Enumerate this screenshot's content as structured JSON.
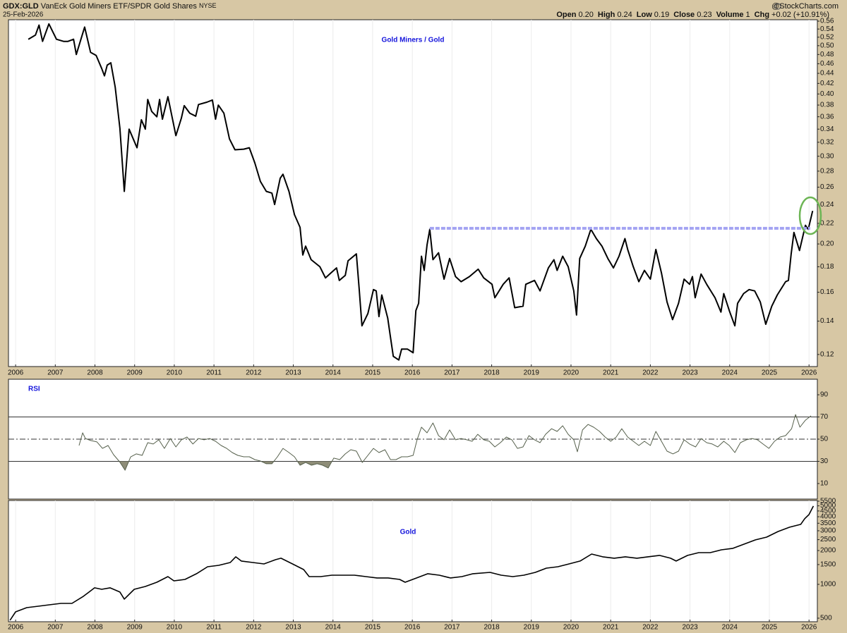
{
  "header": {
    "symbol": "GDX:GLD",
    "name": "VanEck Gold Miners ETF/SPDR Gold Shares",
    "exchange": "NYSE",
    "date": "25-Feb-2026",
    "source": "@StockCharts.com",
    "quote": [
      {
        "label": "Open",
        "value": "0.20"
      },
      {
        "label": "High",
        "value": "0.24"
      },
      {
        "label": "Low",
        "value": "0.19"
      },
      {
        "label": "Close",
        "value": "0.23"
      },
      {
        "label": "Volume",
        "value": "1"
      },
      {
        "label": "Chg",
        "value": "+0.02 (+10.91%)"
      }
    ]
  },
  "chart_data": [
    {
      "type": "line",
      "title": "Gold Miners / Gold",
      "log_scale": true,
      "grid": true,
      "color": "#000000",
      "xlim": [
        2005.82,
        2026.21
      ],
      "xticks": [
        2006,
        2007,
        2008,
        2009,
        2010,
        2011,
        2012,
        2013,
        2014,
        2015,
        2016,
        2017,
        2018,
        2019,
        2020,
        2021,
        2022,
        2023,
        2024,
        2025,
        2026
      ],
      "ylim": [
        0.1135,
        0.5637
      ],
      "yticks": [
        0.56,
        0.54,
        0.52,
        {
          "value": 0.5,
          "label": "0.50"
        },
        0.48,
        0.46,
        0.44,
        0.42,
        {
          "value": 0.4,
          "label": "0.40"
        },
        0.38,
        0.36,
        0.34,
        0.32,
        {
          "value": 0.3,
          "label": "0.30"
        },
        0.28,
        0.26,
        0.24,
        0.22,
        {
          "value": 0.2,
          "label": "0.20"
        },
        0.18,
        0.16,
        0.14,
        0.12
      ],
      "x": [
        2006.32,
        2006.5,
        2006.59,
        2006.68,
        2006.84,
        2007.03,
        2007.21,
        2007.32,
        2007.46,
        2007.53,
        2007.74,
        2007.89,
        2008.03,
        2008.17,
        2008.24,
        2008.31,
        2008.4,
        2008.51,
        2008.63,
        2008.74,
        2008.86,
        2009.06,
        2009.17,
        2009.27,
        2009.33,
        2009.43,
        2009.56,
        2009.63,
        2009.7,
        2009.84,
        2010.04,
        2010.18,
        2010.25,
        2010.39,
        2010.54,
        2010.61,
        2010.82,
        2010.96,
        2011.04,
        2011.11,
        2011.25,
        2011.39,
        2011.53,
        2011.75,
        2011.89,
        2012.03,
        2012.17,
        2012.32,
        2012.46,
        2012.53,
        2012.67,
        2012.74,
        2012.89,
        2013.03,
        2013.17,
        2013.24,
        2013.31,
        2013.45,
        2013.67,
        2013.81,
        2013.95,
        2014.09,
        2014.16,
        2014.31,
        2014.38,
        2014.59,
        2014.66,
        2014.73,
        2014.88,
        2015.02,
        2015.09,
        2015.16,
        2015.23,
        2015.38,
        2015.45,
        2015.52,
        2015.66,
        2015.73,
        2015.88,
        2016.02,
        2016.09,
        2016.16,
        2016.23,
        2016.3,
        2016.37,
        2016.44,
        2016.52,
        2016.66,
        2016.8,
        2016.94,
        2017.09,
        2017.23,
        2017.44,
        2017.66,
        2017.8,
        2018.01,
        2018.08,
        2018.29,
        2018.44,
        2018.58,
        2018.79,
        2018.86,
        2019.08,
        2019.22,
        2019.43,
        2019.57,
        2019.65,
        2019.79,
        2019.93,
        2020.07,
        2020.14,
        2020.22,
        2020.36,
        2020.5,
        2020.64,
        2020.78,
        2020.93,
        2021.07,
        2021.21,
        2021.36,
        2021.43,
        2021.57,
        2021.71,
        2021.85,
        2022.0,
        2022.14,
        2022.28,
        2022.42,
        2022.56,
        2022.71,
        2022.85,
        2022.99,
        2023.06,
        2023.13,
        2023.28,
        2023.42,
        2023.63,
        2023.78,
        2023.85,
        2023.99,
        2024.13,
        2024.2,
        2024.35,
        2024.49,
        2024.63,
        2024.77,
        2024.91,
        2025.06,
        2025.2,
        2025.41,
        2025.48,
        2025.55,
        2025.62,
        2025.76,
        2025.91,
        2025.98,
        2026.09
      ],
      "values": [
        0.515,
        0.525,
        0.55,
        0.51,
        0.553,
        0.515,
        0.51,
        0.51,
        0.515,
        0.48,
        0.545,
        0.485,
        0.478,
        0.45,
        0.435,
        0.457,
        0.462,
        0.413,
        0.341,
        0.255,
        0.34,
        0.312,
        0.355,
        0.34,
        0.39,
        0.369,
        0.36,
        0.39,
        0.356,
        0.395,
        0.33,
        0.358,
        0.379,
        0.366,
        0.361,
        0.381,
        0.385,
        0.389,
        0.356,
        0.38,
        0.366,
        0.325,
        0.309,
        0.31,
        0.312,
        0.291,
        0.267,
        0.255,
        0.253,
        0.24,
        0.271,
        0.276,
        0.255,
        0.229,
        0.216,
        0.19,
        0.198,
        0.186,
        0.18,
        0.171,
        0.175,
        0.179,
        0.169,
        0.173,
        0.185,
        0.191,
        0.163,
        0.137,
        0.145,
        0.162,
        0.161,
        0.143,
        0.158,
        0.142,
        0.13,
        0.119,
        0.117,
        0.123,
        0.123,
        0.121,
        0.147,
        0.152,
        0.189,
        0.177,
        0.199,
        0.214,
        0.186,
        0.192,
        0.17,
        0.187,
        0.172,
        0.168,
        0.172,
        0.178,
        0.171,
        0.166,
        0.156,
        0.166,
        0.171,
        0.149,
        0.15,
        0.166,
        0.169,
        0.161,
        0.179,
        0.186,
        0.177,
        0.189,
        0.18,
        0.161,
        0.144,
        0.187,
        0.198,
        0.214,
        0.205,
        0.198,
        0.187,
        0.179,
        0.189,
        0.205,
        0.195,
        0.18,
        0.168,
        0.177,
        0.17,
        0.195,
        0.175,
        0.153,
        0.141,
        0.152,
        0.17,
        0.166,
        0.172,
        0.156,
        0.174,
        0.166,
        0.156,
        0.146,
        0.159,
        0.147,
        0.137,
        0.152,
        0.159,
        0.162,
        0.161,
        0.153,
        0.138,
        0.15,
        0.158,
        0.168,
        0.169,
        0.191,
        0.211,
        0.194,
        0.218,
        0.214,
        0.233
      ],
      "reference_line": {
        "value": 0.215,
        "from": 2016.44,
        "to": 2026.03,
        "color": "#a3a3f2"
      }
    },
    {
      "type": "line",
      "title": "RSI",
      "color": "#56604c",
      "fill_color": "#8e8d78",
      "xlim": [
        2005.82,
        2026.21
      ],
      "ylim": [
        -4,
        104
      ],
      "yticks": [
        90,
        70,
        50,
        30,
        10
      ],
      "overbought": 70,
      "midline": 50,
      "oversold": 30,
      "x": [
        2007.6,
        2007.69,
        2007.76,
        2007.9,
        2008.05,
        2008.19,
        2008.33,
        2008.47,
        2008.62,
        2008.76,
        2008.9,
        2009.04,
        2009.19,
        2009.33,
        2009.47,
        2009.61,
        2009.75,
        2009.9,
        2010.04,
        2010.18,
        2010.32,
        2010.47,
        2010.61,
        2010.75,
        2010.89,
        2011.04,
        2011.18,
        2011.32,
        2011.46,
        2011.6,
        2011.75,
        2011.89,
        2012.03,
        2012.17,
        2012.32,
        2012.46,
        2012.6,
        2012.74,
        2012.89,
        2013.03,
        2013.17,
        2013.31,
        2013.46,
        2013.6,
        2013.74,
        2013.88,
        2014.02,
        2014.17,
        2014.31,
        2014.45,
        2014.59,
        2014.74,
        2014.88,
        2015.02,
        2015.16,
        2015.31,
        2015.45,
        2015.59,
        2015.73,
        2015.88,
        2016.02,
        2016.12,
        2016.23,
        2016.37,
        2016.52,
        2016.66,
        2016.8,
        2016.94,
        2017.09,
        2017.23,
        2017.37,
        2017.51,
        2017.65,
        2017.8,
        2017.94,
        2018.08,
        2018.22,
        2018.37,
        2018.51,
        2018.65,
        2018.79,
        2018.94,
        2019.08,
        2019.22,
        2019.36,
        2019.51,
        2019.65,
        2019.79,
        2019.93,
        2020.07,
        2020.16,
        2020.29,
        2020.43,
        2020.57,
        2020.72,
        2020.86,
        2021.0,
        2021.14,
        2021.28,
        2021.43,
        2021.57,
        2021.71,
        2021.85,
        2022.0,
        2022.14,
        2022.28,
        2022.42,
        2022.57,
        2022.71,
        2022.85,
        2022.99,
        2023.14,
        2023.28,
        2023.42,
        2023.56,
        2023.7,
        2023.85,
        2023.99,
        2024.13,
        2024.27,
        2024.42,
        2024.56,
        2024.7,
        2024.84,
        2024.99,
        2025.13,
        2025.27,
        2025.41,
        2025.56,
        2025.66,
        2025.77,
        2025.91,
        2026.05
      ],
      "values": [
        44.3,
        55.7,
        50.6,
        48.7,
        47.5,
        41.7,
        44.3,
        36,
        29.7,
        22,
        34,
        36.7,
        35.4,
        46.8,
        45.6,
        49.4,
        41.7,
        50.6,
        43,
        49.4,
        51.9,
        45.6,
        50.6,
        49.4,
        50.6,
        48.1,
        44.3,
        41.7,
        37.9,
        35.4,
        34.1,
        34.1,
        31.6,
        30.3,
        27.8,
        27.8,
        34.1,
        41.7,
        37.9,
        34.1,
        26.5,
        29,
        26.5,
        27.8,
        26.5,
        24,
        32.9,
        31.6,
        36.7,
        40.5,
        39.2,
        29,
        35.4,
        41.7,
        37.9,
        40.5,
        31.6,
        31.6,
        34.1,
        34.1,
        35.4,
        49.4,
        60.8,
        55.7,
        64.6,
        53.2,
        49.4,
        58.3,
        49.4,
        50.6,
        49.4,
        48.1,
        54.4,
        49.4,
        48.1,
        43,
        46.8,
        51.9,
        49.4,
        41.7,
        43,
        53.2,
        49.4,
        46.8,
        54.4,
        59.4,
        57,
        62.1,
        54.4,
        49.4,
        38.6,
        58.3,
        63.3,
        60.8,
        57,
        51.9,
        48.1,
        51.9,
        59.4,
        51.9,
        48.1,
        44.3,
        48.1,
        44.3,
        57,
        48.1,
        39.2,
        36.7,
        39.2,
        49.4,
        45.6,
        43,
        50.6,
        46.8,
        45.6,
        43,
        48.1,
        44.3,
        37.9,
        46.8,
        49.4,
        50.6,
        49.4,
        45.6,
        41.7,
        48.1,
        51.9,
        53.2,
        59.4,
        72.2,
        60.8,
        67.1,
        71
      ]
    },
    {
      "type": "line",
      "title": "Gold",
      "log_scale": true,
      "grid": true,
      "color": "#000000",
      "xlim": [
        2005.82,
        2026.21
      ],
      "xticks": [
        2006,
        2007,
        2008,
        2009,
        2010,
        2011,
        2012,
        2013,
        2014,
        2015,
        2016,
        2017,
        2018,
        2019,
        2020,
        2021,
        2022,
        2023,
        2024,
        2025,
        2026
      ],
      "ylim": [
        465,
        5580
      ],
      "yticks": [
        5500,
        5000,
        4500,
        4000,
        3500,
        3000,
        2500,
        2000,
        1500,
        1000,
        500
      ],
      "x": [
        2005.86,
        2006.0,
        2006.28,
        2006.57,
        2006.85,
        2007.14,
        2007.42,
        2007.71,
        2007.99,
        2008.17,
        2008.38,
        2008.63,
        2008.74,
        2008.99,
        2009.27,
        2009.56,
        2009.84,
        2009.99,
        2010.27,
        2010.56,
        2010.84,
        2011.12,
        2011.41,
        2011.55,
        2011.69,
        2011.98,
        2012.26,
        2012.55,
        2012.69,
        2012.98,
        2013.26,
        2013.4,
        2013.69,
        2013.97,
        2014.26,
        2014.54,
        2014.83,
        2015.11,
        2015.39,
        2015.68,
        2015.82,
        2016.11,
        2016.39,
        2016.68,
        2016.96,
        2017.25,
        2017.53,
        2017.96,
        2018.24,
        2018.53,
        2018.81,
        2019.1,
        2019.38,
        2019.67,
        2019.95,
        2020.23,
        2020.52,
        2020.8,
        2021.09,
        2021.37,
        2021.66,
        2021.94,
        2022.23,
        2022.51,
        2022.65,
        2022.94,
        2023.22,
        2023.51,
        2023.79,
        2024.08,
        2024.36,
        2024.65,
        2024.93,
        2025.22,
        2025.51,
        2025.79,
        2025.89,
        2026.0,
        2026.11
      ],
      "values": [
        479,
        569,
        621,
        639,
        658,
        677,
        677,
        783,
        931,
        904,
        931,
        854,
        739,
        904,
        958,
        1045,
        1173,
        1075,
        1107,
        1243,
        1436,
        1478,
        1566,
        1758,
        1612,
        1566,
        1521,
        1659,
        1708,
        1521,
        1355,
        1173,
        1173,
        1207,
        1207,
        1207,
        1173,
        1140,
        1140,
        1107,
        1045,
        1140,
        1243,
        1207,
        1140,
        1173,
        1243,
        1279,
        1207,
        1173,
        1207,
        1279,
        1395,
        1436,
        1521,
        1612,
        1862,
        1758,
        1708,
        1758,
        1708,
        1758,
        1810,
        1708,
        1612,
        1810,
        1917,
        1917,
        2031,
        2091,
        2280,
        2487,
        2634,
        2957,
        3225,
        3417,
        3837,
        4183,
        4975
      ]
    }
  ]
}
